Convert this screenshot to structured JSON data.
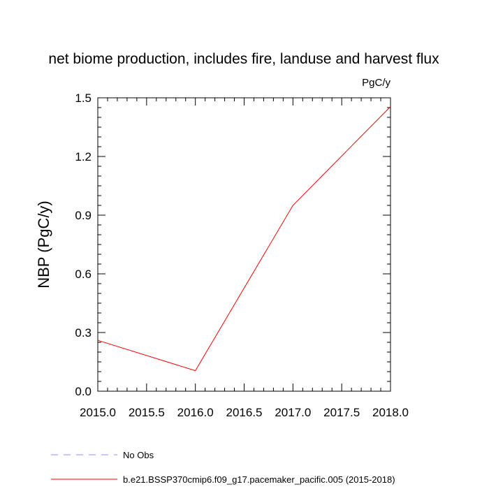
{
  "chart_data": {
    "type": "line",
    "title": "net biome production, includes fire, landuse and harvest flux",
    "units": "PgC/y",
    "xlabel": "",
    "ylabel": "NBP  (PgC/y)",
    "xlim": [
      2015.0,
      2018.0
    ],
    "ylim": [
      0.0,
      1.5
    ],
    "x_ticks": [
      "2015.0",
      "2015.5",
      "2016.0",
      "2016.5",
      "2017.0",
      "2017.5",
      "2018.0"
    ],
    "y_ticks": [
      "0.0",
      "0.3",
      "0.6",
      "0.9",
      "1.2",
      "1.5"
    ],
    "grid": false,
    "legend_position": "bottom",
    "series": [
      {
        "name": "b.e21.BSSP370cmip6.f09_g17.pacemaker_pacific.005 (2015-2018)",
        "color": "#ff0000",
        "style": "solid",
        "x": [
          2015.0,
          2016.0,
          2017.0,
          2018.0
        ],
        "y": [
          0.26,
          0.105,
          0.95,
          1.455
        ]
      }
    ],
    "legend": [
      {
        "label": "No Obs",
        "color": "#8f8fff",
        "style": "dashed"
      },
      {
        "label": "b.e21.BSSP370cmip6.f09_g17.pacemaker_pacific.005 (2015-2018)",
        "color": "#ff0000",
        "style": "solid"
      }
    ]
  }
}
